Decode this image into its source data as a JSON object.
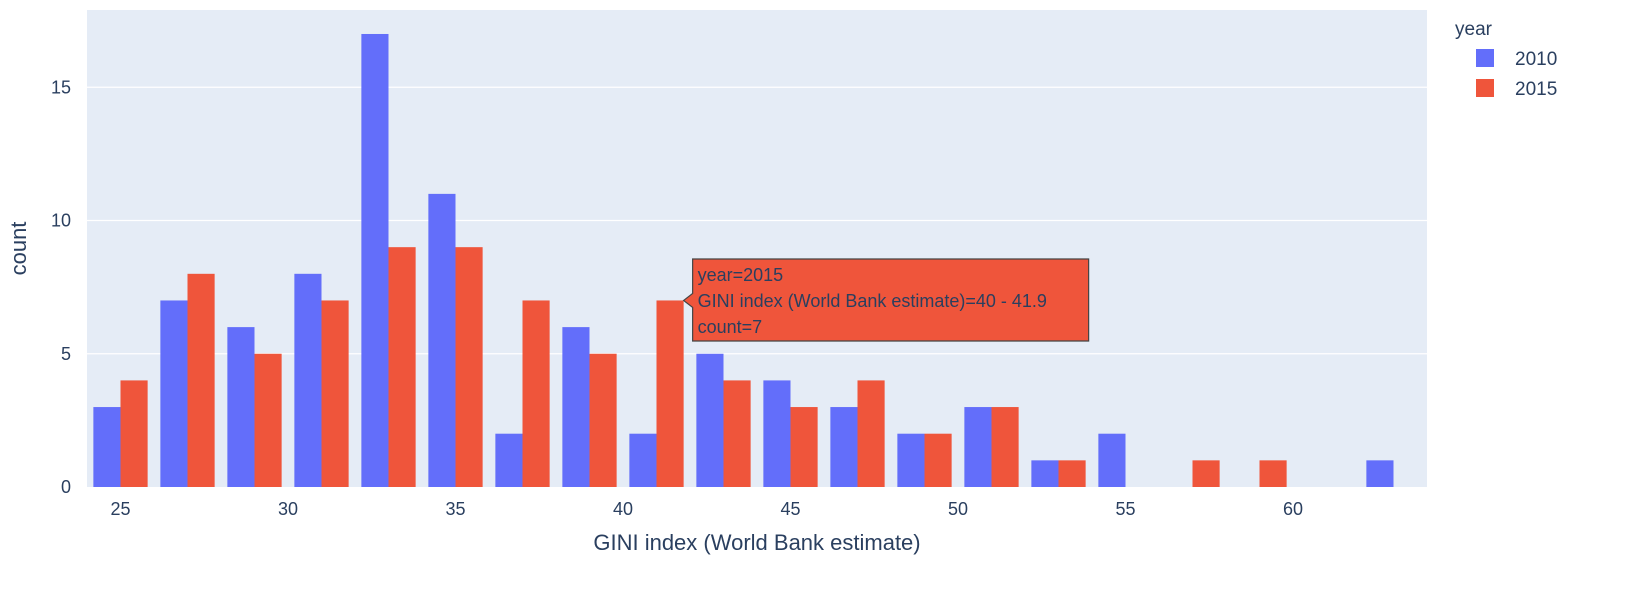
{
  "chart_data": {
    "type": "bar",
    "bin_edges": [
      24,
      26,
      28,
      30,
      32,
      34,
      36,
      38,
      40,
      42,
      44,
      46,
      48,
      50,
      52,
      54,
      56,
      58,
      60,
      62,
      64
    ],
    "series": [
      {
        "name": "2010",
        "color": "#636efa",
        "values": [
          3,
          7,
          6,
          8,
          17,
          11,
          2,
          6,
          2,
          5,
          4,
          3,
          2,
          3,
          1,
          2,
          0,
          0,
          0,
          1
        ]
      },
      {
        "name": "2015",
        "color": "#ef553b",
        "values": [
          4,
          8,
          5,
          7,
          9,
          9,
          7,
          5,
          7,
          4,
          3,
          4,
          2,
          3,
          1,
          0,
          1,
          1,
          0,
          0
        ]
      }
    ],
    "xlabel": "GINI index (World Bank estimate)",
    "ylabel": "count",
    "xlim": [
      24,
      64
    ],
    "ylim": [
      0,
      17.9
    ],
    "x_ticks": [
      25,
      30,
      35,
      40,
      45,
      50,
      55,
      60
    ],
    "y_ticks": [
      0,
      5,
      10,
      15
    ],
    "legend": {
      "title": "year",
      "position": "top-right"
    },
    "grid": true,
    "plot_background": "#e5ecf6",
    "tooltip": {
      "series_index": 1,
      "bin_index": 8,
      "lines": [
        "year=2015",
        "GINI index (World Bank estimate)=40 - 41.9",
        "count=7"
      ]
    }
  }
}
